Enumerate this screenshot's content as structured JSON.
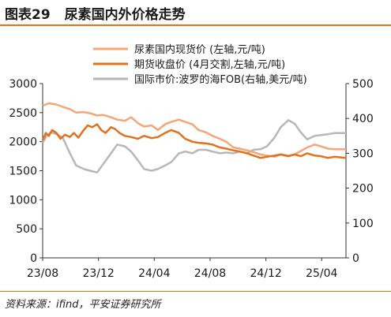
{
  "figure": {
    "number": "图表29",
    "title": "尿素国内外价格走势",
    "source": "资料来源：ifind，平安证券研究所"
  },
  "chart_data": {
    "type": "line",
    "x_ticks": [
      "23/08",
      "23/12",
      "24/04",
      "24/08",
      "24/12",
      "25/04"
    ],
    "x_range": [
      "2023-08-01",
      "2025-06-10"
    ],
    "left_axis": {
      "ylim": [
        0,
        3000
      ],
      "ticks": [
        0,
        500,
        1000,
        1500,
        2000,
        2500,
        3000
      ]
    },
    "right_axis": {
      "ylim": [
        0,
        500
      ],
      "ticks": [
        0,
        100,
        200,
        300,
        400,
        500
      ]
    },
    "series": [
      {
        "name": "尿素国内现货价 (左轴,元/吨)",
        "axis": "left",
        "color": "#f4a678",
        "width": 2.5,
        "points": [
          [
            "2023-08-01",
            2620
          ],
          [
            "2023-08-15",
            2660
          ],
          [
            "2023-09-01",
            2640
          ],
          [
            "2023-09-15",
            2600
          ],
          [
            "2023-10-01",
            2560
          ],
          [
            "2023-10-15",
            2500
          ],
          [
            "2023-11-01",
            2510
          ],
          [
            "2023-11-15",
            2490
          ],
          [
            "2023-12-01",
            2450
          ],
          [
            "2023-12-15",
            2460
          ],
          [
            "2024-01-01",
            2420
          ],
          [
            "2024-01-15",
            2380
          ],
          [
            "2024-02-01",
            2360
          ],
          [
            "2024-02-15",
            2420
          ],
          [
            "2024-03-01",
            2320
          ],
          [
            "2024-03-15",
            2260
          ],
          [
            "2024-04-01",
            2280
          ],
          [
            "2024-04-15",
            2200
          ],
          [
            "2024-05-01",
            2300
          ],
          [
            "2024-05-15",
            2340
          ],
          [
            "2024-06-01",
            2380
          ],
          [
            "2024-06-15",
            2340
          ],
          [
            "2024-07-01",
            2300
          ],
          [
            "2024-07-15",
            2200
          ],
          [
            "2024-08-01",
            2160
          ],
          [
            "2024-08-15",
            2100
          ],
          [
            "2024-09-01",
            2050
          ],
          [
            "2024-09-15",
            2000
          ],
          [
            "2024-10-01",
            1900
          ],
          [
            "2024-10-15",
            1880
          ],
          [
            "2024-11-01",
            1850
          ],
          [
            "2024-11-15",
            1820
          ],
          [
            "2024-12-01",
            1780
          ],
          [
            "2024-12-15",
            1760
          ],
          [
            "2025-01-01",
            1740
          ],
          [
            "2025-01-15",
            1780
          ],
          [
            "2025-02-01",
            1760
          ],
          [
            "2025-02-15",
            1780
          ],
          [
            "2025-03-01",
            1840
          ],
          [
            "2025-03-15",
            1900
          ],
          [
            "2025-04-01",
            1950
          ],
          [
            "2025-04-15",
            1920
          ],
          [
            "2025-05-01",
            1880
          ],
          [
            "2025-05-15",
            1870
          ],
          [
            "2025-06-10",
            1870
          ]
        ]
      },
      {
        "name": "期货收盘价 (4月交割,左轴,元/吨)",
        "axis": "left",
        "color": "#e2711d",
        "width": 2.5,
        "points": [
          [
            "2023-08-01",
            2020
          ],
          [
            "2023-08-08",
            2150
          ],
          [
            "2023-08-15",
            2100
          ],
          [
            "2023-08-22",
            2200
          ],
          [
            "2023-09-01",
            2150
          ],
          [
            "2023-09-10",
            2050
          ],
          [
            "2023-09-20",
            2120
          ],
          [
            "2023-10-01",
            2080
          ],
          [
            "2023-10-10",
            2150
          ],
          [
            "2023-10-20",
            2070
          ],
          [
            "2023-11-01",
            2200
          ],
          [
            "2023-11-10",
            2280
          ],
          [
            "2023-11-20",
            2250
          ],
          [
            "2023-12-01",
            2300
          ],
          [
            "2023-12-10",
            2200
          ],
          [
            "2023-12-20",
            2150
          ],
          [
            "2024-01-01",
            2250
          ],
          [
            "2024-01-10",
            2220
          ],
          [
            "2024-01-20",
            2150
          ],
          [
            "2024-02-01",
            2100
          ],
          [
            "2024-02-15",
            2080
          ],
          [
            "2024-03-01",
            2050
          ],
          [
            "2024-03-15",
            2100
          ],
          [
            "2024-04-01",
            2060
          ],
          [
            "2024-04-15",
            2080
          ],
          [
            "2024-05-01",
            2150
          ],
          [
            "2024-05-15",
            2200
          ],
          [
            "2024-06-01",
            2150
          ],
          [
            "2024-06-15",
            2050
          ],
          [
            "2024-07-01",
            2000
          ],
          [
            "2024-07-15",
            1980
          ],
          [
            "2024-08-01",
            1970
          ],
          [
            "2024-08-15",
            1950
          ],
          [
            "2024-09-01",
            1900
          ],
          [
            "2024-09-15",
            1880
          ],
          [
            "2024-10-01",
            1850
          ],
          [
            "2024-10-15",
            1830
          ],
          [
            "2024-11-01",
            1800
          ],
          [
            "2024-11-15",
            1760
          ],
          [
            "2024-12-01",
            1720
          ],
          [
            "2024-12-15",
            1740
          ],
          [
            "2025-01-01",
            1760
          ],
          [
            "2025-01-15",
            1780
          ],
          [
            "2025-02-01",
            1750
          ],
          [
            "2025-02-15",
            1780
          ],
          [
            "2025-03-01",
            1750
          ],
          [
            "2025-03-15",
            1800
          ],
          [
            "2025-04-01",
            1760
          ],
          [
            "2025-04-15",
            1750
          ],
          [
            "2025-05-01",
            1720
          ],
          [
            "2025-05-15",
            1740
          ],
          [
            "2025-06-10",
            1720
          ]
        ]
      },
      {
        "name": "国际市价:波罗的海FOB(右轴,美元/吨)",
        "axis": "right",
        "color": "#b7b7b7",
        "width": 2.5,
        "points": [
          [
            "2023-08-01",
            330
          ],
          [
            "2023-08-10",
            350
          ],
          [
            "2023-08-20",
            360
          ],
          [
            "2023-09-01",
            355
          ],
          [
            "2023-09-15",
            345
          ],
          [
            "2023-10-01",
            300
          ],
          [
            "2023-10-15",
            265
          ],
          [
            "2023-11-01",
            255
          ],
          [
            "2023-11-15",
            250
          ],
          [
            "2023-12-01",
            245
          ],
          [
            "2023-12-15",
            270
          ],
          [
            "2024-01-01",
            300
          ],
          [
            "2024-01-15",
            325
          ],
          [
            "2024-02-01",
            320
          ],
          [
            "2024-02-15",
            305
          ],
          [
            "2024-03-01",
            280
          ],
          [
            "2024-03-15",
            255
          ],
          [
            "2024-04-01",
            250
          ],
          [
            "2024-04-15",
            255
          ],
          [
            "2024-05-01",
            265
          ],
          [
            "2024-05-15",
            275
          ],
          [
            "2024-06-01",
            300
          ],
          [
            "2024-06-15",
            305
          ],
          [
            "2024-07-01",
            300
          ],
          [
            "2024-07-15",
            310
          ],
          [
            "2024-08-01",
            310
          ],
          [
            "2024-08-15",
            305
          ],
          [
            "2024-09-01",
            300
          ],
          [
            "2024-09-15",
            302
          ],
          [
            "2024-10-01",
            300
          ],
          [
            "2024-10-15",
            305
          ],
          [
            "2024-11-01",
            300
          ],
          [
            "2024-11-15",
            310
          ],
          [
            "2024-12-01",
            312
          ],
          [
            "2024-12-15",
            320
          ],
          [
            "2025-01-01",
            345
          ],
          [
            "2025-01-15",
            375
          ],
          [
            "2025-02-01",
            395
          ],
          [
            "2025-02-15",
            385
          ],
          [
            "2025-03-01",
            360
          ],
          [
            "2025-03-15",
            340
          ],
          [
            "2025-04-01",
            350
          ],
          [
            "2025-04-15",
            352
          ],
          [
            "2025-05-01",
            355
          ],
          [
            "2025-05-15",
            358
          ],
          [
            "2025-06-10",
            358
          ]
        ]
      }
    ],
    "legend_position": "top-center",
    "grid": false
  }
}
